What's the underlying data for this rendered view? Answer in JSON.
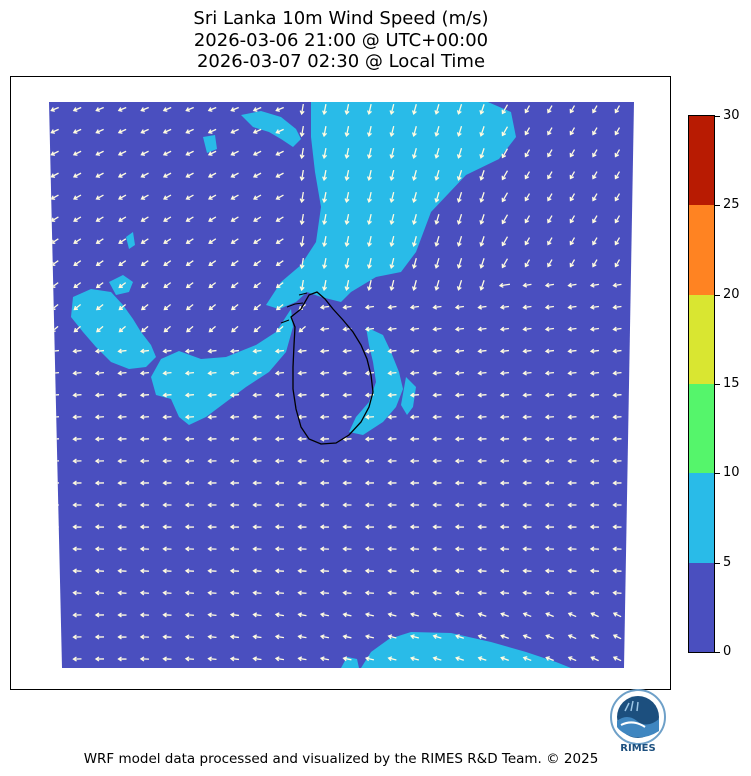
{
  "header": {
    "title_line1": "Sri Lanka 10m Wind Speed (m/s)",
    "title_line2": "2026-03-06 21:00 @ UTC+00:00",
    "title_line3": "2026-03-07 02:30 @ Local Time"
  },
  "colorbar": {
    "min": 0,
    "max": 30,
    "levels": [
      {
        "from": 0,
        "to": 5,
        "color": "#4a4fbf"
      },
      {
        "from": 5,
        "to": 10,
        "color": "#29bbe8"
      },
      {
        "from": 10,
        "to": 15,
        "color": "#55f56b"
      },
      {
        "from": 15,
        "to": 20,
        "color": "#d9e631"
      },
      {
        "from": 20,
        "to": 25,
        "color": "#ff8322"
      },
      {
        "from": 25,
        "to": 30,
        "color": "#b81b02"
      }
    ],
    "tick_labels": [
      "0",
      "5",
      "10",
      "15",
      "20",
      "25",
      "30"
    ]
  },
  "map": {
    "arrow_color": "#fffbe0",
    "coastline_color": "#000000",
    "land_region": "Sri Lanka"
  },
  "logo": {
    "label": "RIMES"
  },
  "footer": {
    "text": "WRF model data processed and visualized by the RIMES R&D Team. © 2025"
  }
}
